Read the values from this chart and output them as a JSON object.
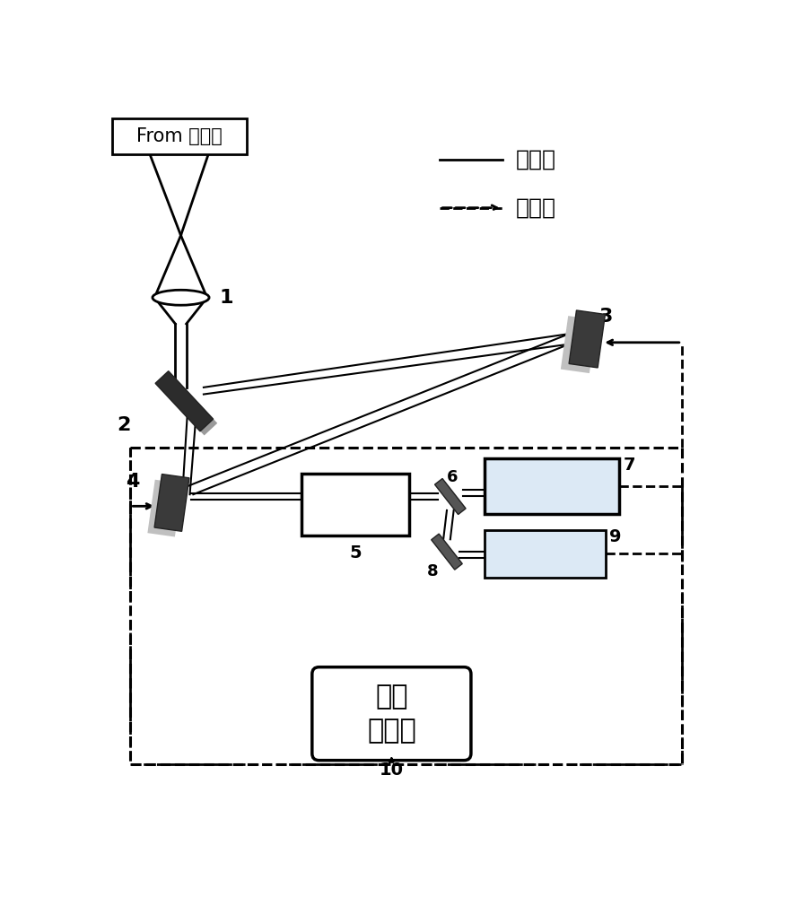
{
  "bg_color": "#ffffff",
  "legend_solid_label": "光信号",
  "legend_dashed_label": "电信号",
  "wavefront_label": "波前\n控制器",
  "from_label": "From 望远镜",
  "mirror_dark": "#3d3d3d",
  "mirror_light": "#b0b0b0",
  "mirror_very_light": "#d0d0d0",
  "line_color": "#000000",
  "font_cn": "SimHei"
}
